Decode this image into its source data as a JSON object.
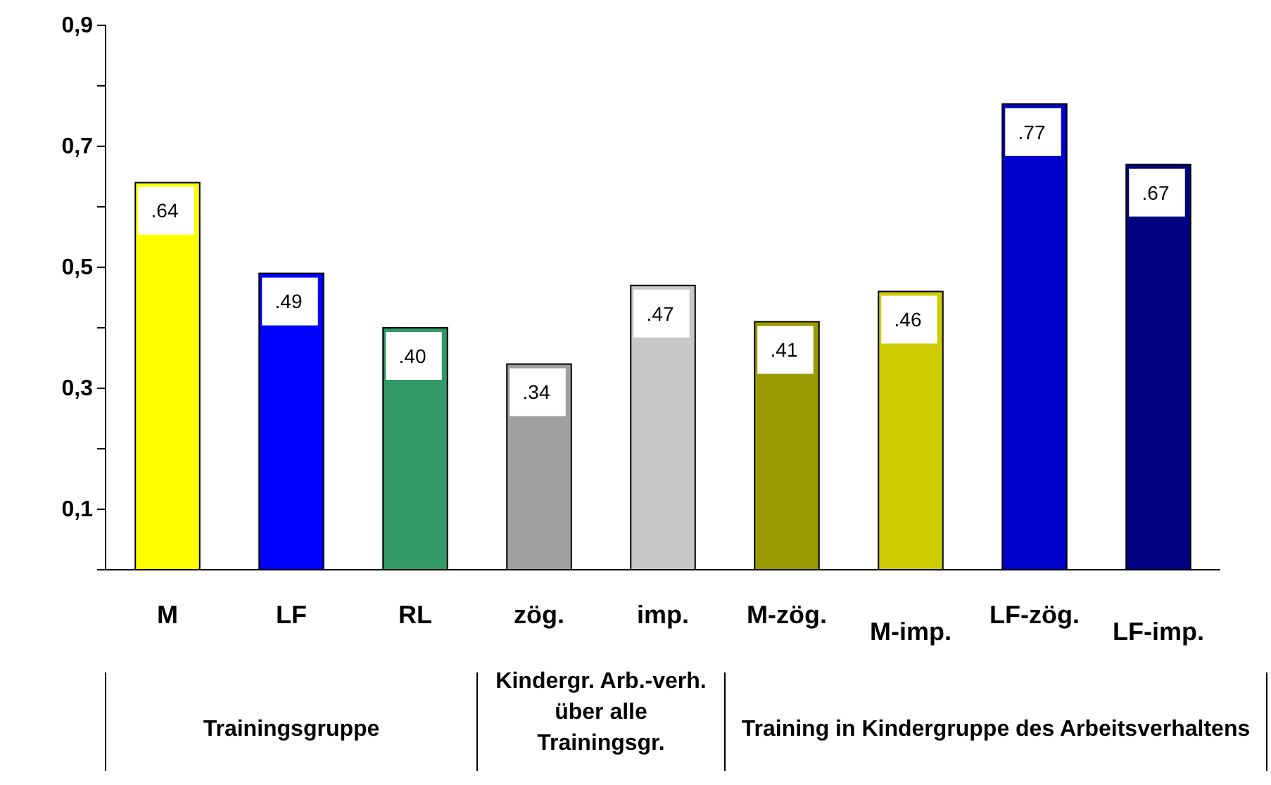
{
  "chart_data": {
    "type": "bar",
    "categories": [
      "M",
      "LF",
      "RL",
      "zög.",
      "imp.",
      "M-zög.",
      "M-imp.",
      "LF-zög.",
      "LF-imp."
    ],
    "values": [
      0.64,
      0.49,
      0.4,
      0.34,
      0.47,
      0.41,
      0.46,
      0.77,
      0.67
    ],
    "value_labels": [
      ".64",
      ".49",
      ".40",
      ".34",
      ".47",
      ".41",
      ".46",
      ".77",
      ".67"
    ],
    "colors": [
      "#ffff00",
      "#0000ff",
      "#339966",
      "#a0a0a0",
      "#c8c8c8",
      "#999900",
      "#cccc00",
      "#0000cc",
      "#000080"
    ],
    "ylim": [
      0,
      0.9
    ],
    "yticks": [
      {
        "value": 0,
        "label": null
      },
      {
        "value": 0.1,
        "label": "0,1"
      },
      {
        "value": 0.2,
        "label": null
      },
      {
        "value": 0.3,
        "label": "0,3"
      },
      {
        "value": 0.4,
        "label": null
      },
      {
        "value": 0.5,
        "label": "0,5"
      },
      {
        "value": 0.6,
        "label": null
      },
      {
        "value": 0.7,
        "label": "0,7"
      },
      {
        "value": 0.8,
        "label": null
      },
      {
        "value": 0.9,
        "label": "0,9"
      }
    ],
    "annotations": [
      "Trainingsgruppe",
      "Kindergr. Arb.-verh. über alle Trainingsgr.",
      "Training in Kindergruppe des Arbeitsverhaltens"
    ]
  }
}
